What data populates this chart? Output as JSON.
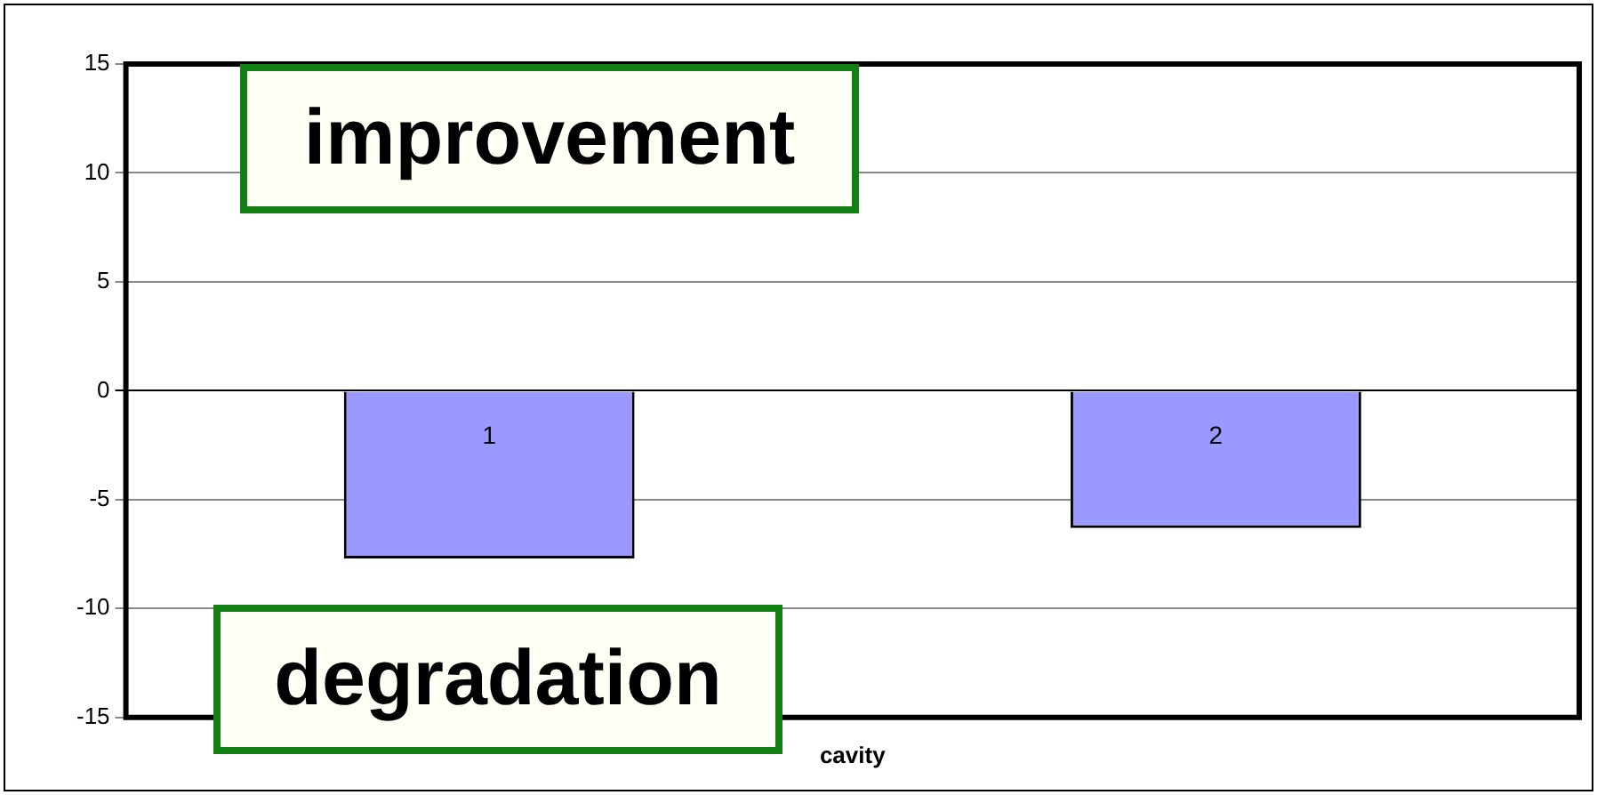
{
  "chart_data": {
    "type": "bar",
    "xlabel": "cavity",
    "categories": [
      "1",
      "2"
    ],
    "values": [
      -7.7,
      -6.3
    ],
    "color": "#9999ff",
    "ylim": [
      -15,
      15
    ],
    "yticks": [
      -15,
      -10,
      -5,
      0,
      5,
      10,
      15
    ],
    "grid": "y",
    "legend": false,
    "tick_labels": "y",
    "annotations": [
      "improvement",
      "degradation"
    ]
  }
}
